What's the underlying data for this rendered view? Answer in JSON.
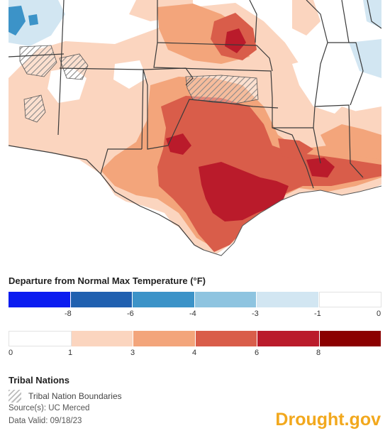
{
  "legend": {
    "title": "Departure from Normal Max Temperature (°F)",
    "below_normal": {
      "colors": [
        "#0b1cf0",
        "#2060b0",
        "#3c93c8",
        "#8ec4e0",
        "#d2e6f2",
        "#ffffff"
      ],
      "ticks": [
        "-8",
        "-6",
        "-4",
        "-3",
        "-1",
        "0"
      ]
    },
    "above_normal": {
      "colors": [
        "#ffffff",
        "#fbd5bf",
        "#f3a57b",
        "#d95d4a",
        "#ba1b2b",
        "#8b0000"
      ],
      "ticks": [
        "0",
        "1",
        "3",
        "4",
        "6",
        "8"
      ]
    }
  },
  "map_colors": {
    "normal": "#ffffff",
    "above_1_3": "#fbd5bf",
    "above_3_4": "#f3a57b",
    "above_4_6": "#d95d4a",
    "above_6_8": "#ba1b2b",
    "below_1_3": "#d2e6f2",
    "below_4_6": "#3c93c8",
    "boundary": "#3a3a3a"
  },
  "tribal": {
    "title": "Tribal Nations",
    "boundaries_label": "Tribal Nation Boundaries"
  },
  "source": "Source(s): UC Merced",
  "data_valid": "Data Valid: 09/18/23",
  "logo": "Drought.gov"
}
